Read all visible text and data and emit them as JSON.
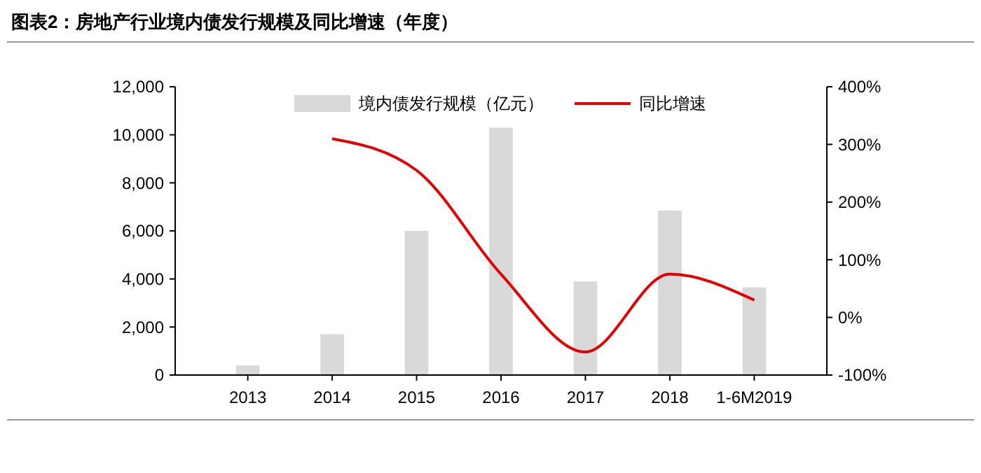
{
  "chart_data": {
    "type": "bar",
    "title": "图表2：房地产行业境内债发行规模及同比增速（年度）",
    "categories": [
      "2013",
      "2014",
      "2015",
      "2016",
      "2017",
      "2018",
      "1-6M2019"
    ],
    "series": [
      {
        "name": "境内债发行规模（亿元）",
        "color": "#d9d9d9",
        "values": [
          400,
          1700,
          6000,
          10300,
          3900,
          6850,
          3650
        ]
      },
      {
        "name": "同比增速",
        "type": "line",
        "axis": "y2",
        "color": "#e00000",
        "marker": "none",
        "values": [
          null,
          310,
          255,
          75,
          -60,
          75,
          30
        ]
      }
    ],
    "ylim": [
      0,
      12000
    ],
    "yticks": [
      {
        "value": 0,
        "label": "0"
      },
      {
        "value": 2000,
        "label": "2,000"
      },
      {
        "value": 4000,
        "label": "4,000"
      },
      {
        "value": 6000,
        "label": "6,000"
      },
      {
        "value": 8000,
        "label": "8,000"
      },
      {
        "value": 10000,
        "label": "10,000"
      },
      {
        "value": 12000,
        "label": "12,000"
      }
    ],
    "y2lim": [
      -100,
      400
    ],
    "y2ticks": [
      {
        "value": -100,
        "label": "-100%"
      },
      {
        "value": 0,
        "label": "0%"
      },
      {
        "value": 100,
        "label": "100%"
      },
      {
        "value": 200,
        "label": "200%"
      },
      {
        "value": 300,
        "label": "300%"
      },
      {
        "value": 400,
        "label": "400%"
      }
    ],
    "grid": false,
    "legend": "top"
  }
}
